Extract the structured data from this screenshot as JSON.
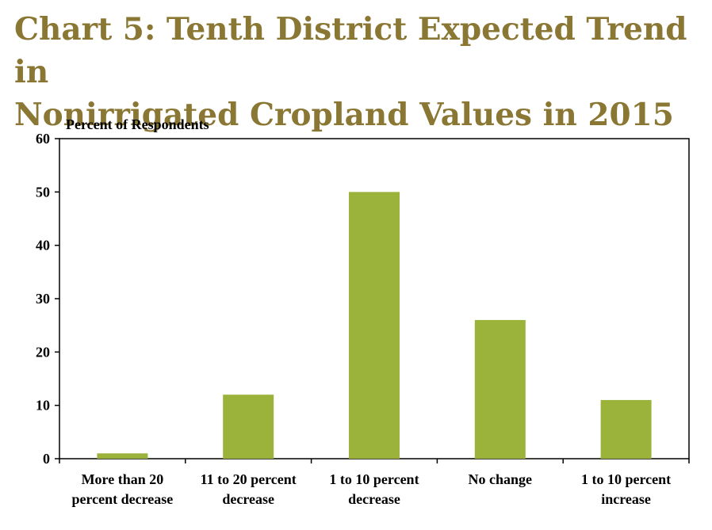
{
  "chart_data": {
    "type": "bar",
    "title_lines": [
      "Chart 5: Tenth District Expected Trend in",
      "Nonirrigated Cropland Values in 2015"
    ],
    "ylabel": "Percent of Respondents",
    "xlabel": "",
    "categories": [
      [
        "More than 20",
        "percent decrease"
      ],
      [
        "11 to 20 percent",
        "decrease"
      ],
      [
        "1 to 10 percent",
        "decrease"
      ],
      [
        "No change"
      ],
      [
        "1 to 10 percent",
        "increase"
      ]
    ],
    "values": [
      1,
      12,
      50,
      26,
      11
    ],
    "ylim": [
      0,
      60
    ],
    "yticks": [
      "0",
      "10",
      "20",
      "30",
      "40",
      "50",
      "60"
    ],
    "grid": false,
    "legend": "none",
    "bar_color": "#9bb23b",
    "title_color": "#8a7734"
  }
}
